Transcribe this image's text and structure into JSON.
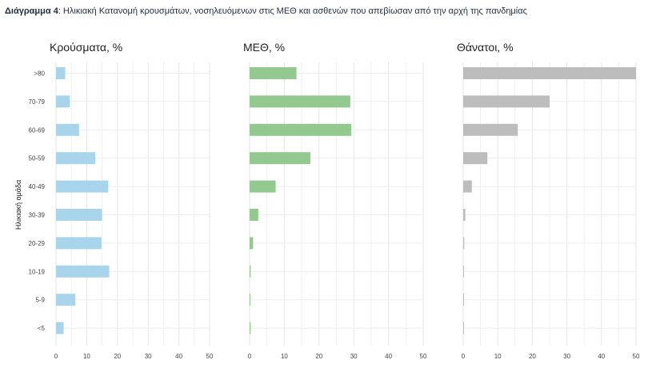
{
  "caption": {
    "prefix": "Διάγραμμα 4",
    "text": ": Ηλικιακή Κατανομή κρουσμάτων, νοσηλευόμενων στις ΜΕΘ και ασθενών που απεβίωσαν από την αρχή της πανδημίας"
  },
  "chart_data": {
    "type": "bar",
    "orientation": "horizontal",
    "ylabel": "Ηλικιακή ομάδα",
    "categories": [
      ">80",
      "70-79",
      "60-69",
      "50-59",
      "40-49",
      "30-39",
      "20-29",
      "10-19",
      "5-9",
      "<5"
    ],
    "xlim": [
      0,
      50
    ],
    "x_ticks": [
      0,
      10,
      20,
      30,
      40,
      50
    ],
    "grid": true,
    "panels": [
      {
        "title": "Κρούσματα, %",
        "color": "#a8d4ec",
        "values": [
          3.0,
          4.5,
          7.5,
          12.8,
          17.0,
          15.0,
          14.8,
          17.3,
          6.3,
          2.5
        ]
      },
      {
        "title": "ΜΕΘ, %",
        "color": "#93c88f",
        "values": [
          13.5,
          29.0,
          29.3,
          17.5,
          7.5,
          2.5,
          1.0,
          0.3,
          0.2,
          0.3
        ]
      },
      {
        "title": "Θάνατοι, %",
        "color": "#bdbdbd",
        "values": [
          50.0,
          25.0,
          15.8,
          7.0,
          2.5,
          0.6,
          0.3,
          0.1,
          0.1,
          0.1
        ]
      }
    ]
  }
}
